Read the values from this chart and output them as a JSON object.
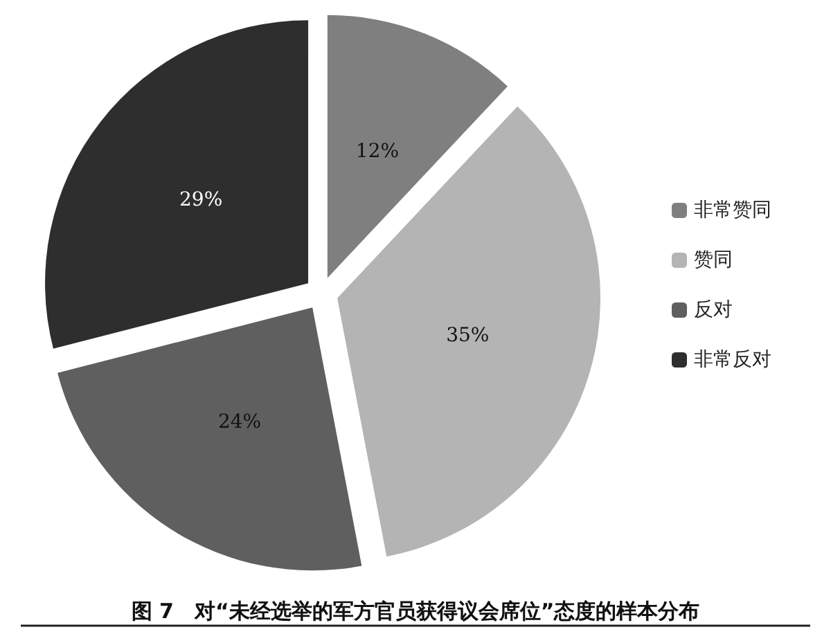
{
  "chart_data": {
    "type": "pie",
    "title": "图 7　对“未经选举的军方官员获得议会席位”态度的样本分布",
    "categories": [
      "非常赞同",
      "赞同",
      "反对",
      "非常反对"
    ],
    "values": [
      12,
      35,
      24,
      29
    ],
    "colors": [
      "#7f7f7f",
      "#b4b4b4",
      "#5f5f5f",
      "#2e2e2e"
    ],
    "value_labels": [
      "12%",
      "35%",
      "24%",
      "29%"
    ],
    "legend": "right"
  }
}
